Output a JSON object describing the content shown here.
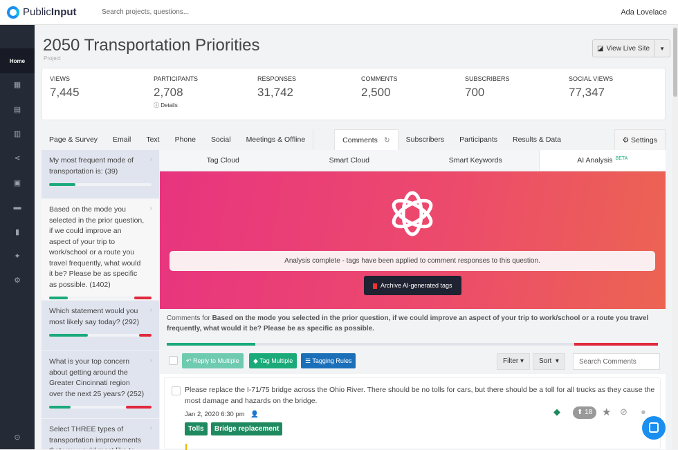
{
  "header": {
    "brand_prefix": "Public",
    "brand_suffix": "Input",
    "search_placeholder": "Search projects, questions...",
    "user": "Ada Lovelace"
  },
  "sidebar": {
    "home": "Home",
    "icons": [
      "calendar-icon",
      "document-icon",
      "map-icon",
      "share-icon",
      "contacts-icon",
      "inbox-icon",
      "book-icon",
      "sparkle-icon",
      "settings-icon",
      "help-icon"
    ]
  },
  "project": {
    "title": "2050 Transportation Priorities",
    "subtitle": "Project",
    "view_live": "View Live Site"
  },
  "stats": [
    {
      "label": "VIEWS",
      "value": "7,445"
    },
    {
      "label": "PARTICIPANTS",
      "value": "2,708",
      "details": "Details"
    },
    {
      "label": "RESPONSES",
      "value": "31,742"
    },
    {
      "label": "COMMENTS",
      "value": "2,500"
    },
    {
      "label": "SUBSCRIBERS",
      "value": "700"
    },
    {
      "label": "SOCIAL VIEWS",
      "value": "77,347"
    }
  ],
  "tabs": [
    "Page & Survey",
    "Email",
    "Text",
    "Phone",
    "Social",
    "Meetings & Offline",
    "Comments",
    "Subscribers",
    "Participants",
    "Results & Data"
  ],
  "settings_label": "Settings",
  "questions": [
    {
      "text": "My most frequent mode of transportation is: (39)",
      "positive": 0.26,
      "negative": 0
    },
    {
      "text": "Based on the mode you selected in the prior question, if we could improve an aspect of your trip to work/school or a route you travel frequently, what would it be? Please be as specific as possible. (1402)",
      "positive": 0.18,
      "negative": 0.17
    },
    {
      "text": "Which statement would you most likely say today? (292)",
      "positive": 0.38,
      "negative": 0.12
    },
    {
      "text": "What is your top concern about getting around the Greater Cincinnati region over the next 25 years? (252)",
      "positive": 0.21,
      "negative": 0.25
    },
    {
      "text": "Select THREE types of transportation improvements that you would most like to",
      "positive": 0,
      "negative": 0
    }
  ],
  "subtabs": [
    "Tag Cloud",
    "Smart Cloud",
    "Smart Keywords",
    "AI Analysis"
  ],
  "beta": "BETA",
  "ai": {
    "notice": "Analysis complete - tags have been applied to comment responses to this question.",
    "archive": "Archive AI-generated tags"
  },
  "comments_for": {
    "prefix": "Comments for",
    "question": "Based on the mode you selected in the prior question, if we could improve an aspect of your trip to work/school or a route you travel frequently, what would it be? Please be as specific as possible.",
    "positive": 0.18,
    "negative": 0.17
  },
  "toolbar": {
    "reply": "Reply to Multiple",
    "tag": "Tag Multiple",
    "rules": "Tagging Rules",
    "filter": "Filter",
    "sort": "Sort",
    "search_placeholder": "Search Comments"
  },
  "comment": {
    "text": "Please replace the I-71/75 bridge across the Ohio River. There should be no tolls for cars, but there should be a toll for all trucks as they cause the most damage and hazards on the bridge.",
    "date": "Jan 2, 2020 6:30 pm",
    "votes": "18",
    "tags": [
      "Tolls",
      "Bridge replacement"
    ]
  },
  "colors": {
    "positive": "#1aaa7a",
    "negative": "#e0293d",
    "brand": "#1a8ff0",
    "tag": "#1f8a5f"
  }
}
